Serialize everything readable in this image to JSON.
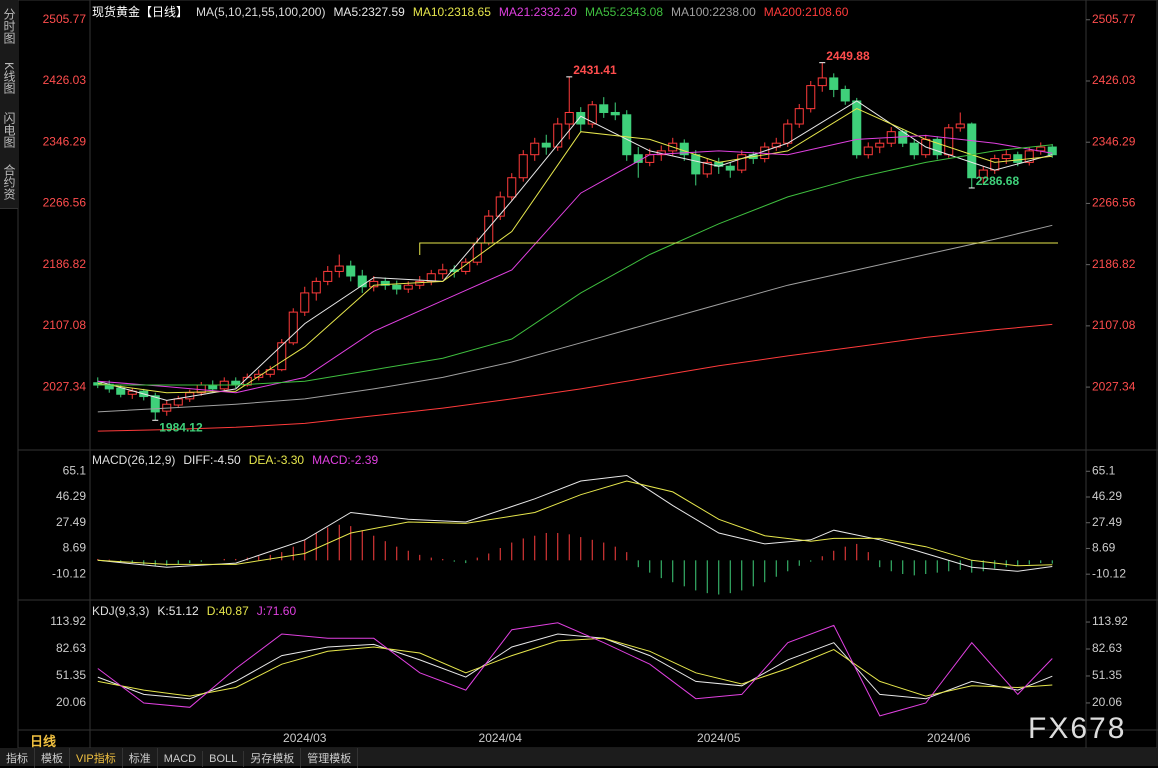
{
  "ui": {
    "sidebar": [
      "分时图",
      "K线图",
      "闪电图",
      "合约资料"
    ],
    "period": "日线",
    "tabs": [
      "指标",
      "模板",
      "VIP指标",
      "标准",
      "MACD",
      "BOLL",
      "另存模板",
      "管理模板"
    ],
    "watermark": "FX678"
  },
  "chart_data": [
    {
      "type": "candlestick",
      "title": "现货黄金【日线】",
      "subtitle": "MA(5,10,21,55,100,200)",
      "up_color": "#ff3b3b",
      "down_color": "#3fd07a",
      "xlim": [
        -0.5,
        83.5
      ],
      "ylim": [
        1948,
        2525
      ],
      "yticks": [
        2027.34,
        2107.08,
        2186.82,
        2266.56,
        2346.29,
        2426.03,
        2505.77
      ],
      "ohlc": [
        [
          2033,
          2040,
          2026,
          2030
        ],
        [
          2031,
          2036,
          2020,
          2025
        ],
        [
          2026,
          2030,
          2014,
          2018
        ],
        [
          2018,
          2026,
          2012,
          2022
        ],
        [
          2022,
          2025,
          2010,
          2015
        ],
        [
          2016,
          2020,
          1984.12,
          1995
        ],
        [
          1996,
          2010,
          1990,
          2005
        ],
        [
          2004,
          2016,
          2000,
          2012
        ],
        [
          2012,
          2024,
          2008,
          2020
        ],
        [
          2020,
          2034,
          2016,
          2030
        ],
        [
          2030,
          2036,
          2020,
          2025
        ],
        [
          2025,
          2040,
          2022,
          2035
        ],
        [
          2035,
          2040,
          2026,
          2030
        ],
        [
          2030,
          2045,
          2028,
          2040
        ],
        [
          2040,
          2050,
          2036,
          2044
        ],
        [
          2044,
          2055,
          2040,
          2050
        ],
        [
          2050,
          2090,
          2048,
          2085
        ],
        [
          2085,
          2130,
          2082,
          2125
        ],
        [
          2125,
          2158,
          2120,
          2150
        ],
        [
          2150,
          2170,
          2140,
          2165
        ],
        [
          2165,
          2185,
          2160,
          2178
        ],
        [
          2178,
          2200,
          2170,
          2185
        ],
        [
          2185,
          2192,
          2165,
          2172
        ],
        [
          2172,
          2180,
          2150,
          2158
        ],
        [
          2158,
          2172,
          2152,
          2165
        ],
        [
          2165,
          2170,
          2154,
          2160
        ],
        [
          2160,
          2166,
          2148,
          2155
        ],
        [
          2155,
          2165,
          2150,
          2160
        ],
        [
          2160,
          2172,
          2155,
          2165
        ],
        [
          2165,
          2180,
          2160,
          2175
        ],
        [
          2175,
          2188,
          2168,
          2180
        ],
        [
          2180,
          2186,
          2170,
          2178
        ],
        [
          2178,
          2195,
          2174,
          2190
        ],
        [
          2190,
          2222,
          2186,
          2215
        ],
        [
          2215,
          2258,
          2212,
          2250
        ],
        [
          2250,
          2282,
          2245,
          2275
        ],
        [
          2275,
          2306,
          2270,
          2300
        ],
        [
          2300,
          2336,
          2295,
          2330
        ],
        [
          2330,
          2352,
          2322,
          2345
        ],
        [
          2345,
          2356,
          2330,
          2340
        ],
        [
          2340,
          2378,
          2335,
          2370
        ],
        [
          2370,
          2431.41,
          2350,
          2385
        ],
        [
          2385,
          2392,
          2360,
          2370
        ],
        [
          2370,
          2400,
          2365,
          2395
        ],
        [
          2395,
          2405,
          2378,
          2385
        ],
        [
          2385,
          2398,
          2375,
          2382
        ],
        [
          2382,
          2388,
          2322,
          2330
        ],
        [
          2330,
          2340,
          2300,
          2320
        ],
        [
          2320,
          2338,
          2315,
          2330
        ],
        [
          2330,
          2342,
          2322,
          2335
        ],
        [
          2335,
          2352,
          2328,
          2345
        ],
        [
          2345,
          2350,
          2322,
          2330
        ],
        [
          2330,
          2336,
          2290,
          2305
        ],
        [
          2305,
          2325,
          2300,
          2320
        ],
        [
          2320,
          2326,
          2305,
          2315
        ],
        [
          2315,
          2320,
          2300,
          2310
        ],
        [
          2310,
          2336,
          2306,
          2330
        ],
        [
          2330,
          2334,
          2318,
          2325
        ],
        [
          2325,
          2346,
          2320,
          2340
        ],
        [
          2340,
          2352,
          2335,
          2345
        ],
        [
          2345,
          2376,
          2340,
          2370
        ],
        [
          2370,
          2396,
          2365,
          2390
        ],
        [
          2390,
          2426,
          2385,
          2420
        ],
        [
          2420,
          2449.88,
          2412,
          2430
        ],
        [
          2430,
          2436,
          2405,
          2415
        ],
        [
          2415,
          2420,
          2395,
          2400
        ],
        [
          2400,
          2404,
          2325,
          2330
        ],
        [
          2330,
          2346,
          2325,
          2340
        ],
        [
          2340,
          2350,
          2332,
          2345
        ],
        [
          2345,
          2366,
          2340,
          2360
        ],
        [
          2360,
          2364,
          2340,
          2345
        ],
        [
          2345,
          2350,
          2324,
          2330
        ],
        [
          2330,
          2356,
          2326,
          2350
        ],
        [
          2350,
          2354,
          2324,
          2330
        ],
        [
          2330,
          2370,
          2326,
          2365
        ],
        [
          2365,
          2385,
          2360,
          2370
        ],
        [
          2370,
          2372,
          2286.68,
          2300
        ],
        [
          2300,
          2315,
          2292,
          2310
        ],
        [
          2310,
          2330,
          2305,
          2325
        ],
        [
          2325,
          2336,
          2318,
          2330
        ],
        [
          2330,
          2334,
          2315,
          2320
        ],
        [
          2320,
          2340,
          2316,
          2335
        ],
        [
          2335,
          2346,
          2330,
          2340
        ],
        [
          2340,
          2344,
          2326,
          2330
        ]
      ],
      "series": [
        {
          "name": "MA5:2327.59",
          "color": "#e8e8e8",
          "x": [
            0,
            6,
            12,
            18,
            24,
            30,
            36,
            42,
            48,
            54,
            60,
            66,
            72,
            78,
            83
          ],
          "values": [
            2035,
            2010,
            2025,
            2110,
            2170,
            2165,
            2270,
            2380,
            2335,
            2315,
            2345,
            2400,
            2340,
            2310,
            2330
          ]
        },
        {
          "name": "MA10:2318.65",
          "color": "#e6e64c",
          "x": [
            0,
            6,
            12,
            18,
            24,
            30,
            36,
            42,
            48,
            54,
            60,
            66,
            72,
            78,
            83
          ],
          "values": [
            2032,
            2020,
            2022,
            2080,
            2160,
            2165,
            2230,
            2360,
            2350,
            2320,
            2335,
            2390,
            2350,
            2320,
            2328
          ]
        },
        {
          "name": "MA21:2332.20",
          "color": "#e040e0",
          "x": [
            0,
            6,
            12,
            18,
            24,
            30,
            36,
            42,
            48,
            54,
            60,
            66,
            72,
            78,
            83
          ],
          "values": [
            2035,
            2028,
            2020,
            2040,
            2100,
            2140,
            2180,
            2280,
            2330,
            2335,
            2330,
            2350,
            2355,
            2345,
            2332
          ]
        },
        {
          "name": "MA55:2343.08",
          "color": "#3fbf3f",
          "x": [
            0,
            6,
            12,
            18,
            24,
            30,
            36,
            42,
            48,
            54,
            60,
            66,
            72,
            78,
            83
          ],
          "values": [
            2030,
            2030,
            2030,
            2035,
            2050,
            2065,
            2090,
            2150,
            2200,
            2240,
            2275,
            2300,
            2320,
            2335,
            2343
          ]
        },
        {
          "name": "MA100:2238.00",
          "color": "#a0a0a0",
          "x": [
            0,
            6,
            12,
            18,
            24,
            30,
            36,
            42,
            48,
            54,
            60,
            66,
            72,
            78,
            83
          ],
          "values": [
            1995,
            2000,
            2005,
            2012,
            2025,
            2040,
            2060,
            2085,
            2110,
            2135,
            2160,
            2180,
            2200,
            2220,
            2238
          ]
        },
        {
          "name": "MA200:2108.60",
          "color": "#ff3b3b",
          "x": [
            0,
            6,
            12,
            18,
            24,
            30,
            36,
            42,
            48,
            54,
            60,
            66,
            72,
            78,
            83
          ],
          "values": [
            1970,
            1972,
            1975,
            1980,
            1990,
            2000,
            2012,
            2025,
            2040,
            2055,
            2068,
            2080,
            2092,
            2102,
            2109
          ]
        }
      ],
      "reference_line": {
        "value": 2215,
        "x": [
          28,
          83.5
        ],
        "color": "#e6e64c"
      },
      "high_low_labels": [
        {
          "x": 41,
          "y": 2431.41,
          "color": "#ff4d4d"
        },
        {
          "x": 63,
          "y": 2449.88,
          "color": "#ff4d4d"
        },
        {
          "x": 76,
          "y": 2286.68,
          "color": "#3fd07a"
        },
        {
          "x": 5,
          "y": 1984.12,
          "color": "#3fd07a"
        }
      ]
    },
    {
      "type": "macd",
      "title": "MACD(26,12,9)",
      "xlim": [
        -0.5,
        83.5
      ],
      "ylim": [
        -29,
        77
      ],
      "yticks": [
        -10.12,
        8.69,
        27.49,
        46.29,
        65.1
      ],
      "series": [
        {
          "name": "DIFF:-4.50",
          "color": "#e8e8e8",
          "x": [
            0,
            6,
            12,
            18,
            22,
            27,
            32,
            38,
            42,
            46,
            50,
            54,
            58,
            62,
            64,
            68,
            72,
            76,
            80,
            83
          ],
          "values": [
            0,
            -5,
            -2,
            15,
            35,
            30,
            28,
            45,
            58,
            62,
            40,
            20,
            12,
            15,
            22,
            15,
            5,
            -5,
            -8,
            -4.5
          ]
        },
        {
          "name": "DEA:-3.30",
          "color": "#e6e64c",
          "x": [
            0,
            6,
            12,
            18,
            22,
            27,
            32,
            38,
            42,
            46,
            50,
            54,
            58,
            62,
            64,
            68,
            72,
            76,
            80,
            83
          ],
          "values": [
            0,
            -3,
            -3,
            5,
            20,
            28,
            27,
            35,
            48,
            58,
            50,
            30,
            18,
            14,
            16,
            16,
            10,
            0,
            -4,
            -3.3
          ]
        }
      ],
      "histogram": {
        "name": "MACD:-2.39",
        "color": "#e040e0",
        "up_color": "#ff4040",
        "down_color": "#3fd07a",
        "values": [
          1,
          0.5,
          -1,
          -2,
          -3,
          -4,
          -4,
          -3,
          -2,
          -1,
          0,
          1,
          1,
          2,
          3,
          4,
          6,
          10,
          15,
          20,
          24,
          26,
          25,
          22,
          18,
          14,
          10,
          7,
          4,
          2,
          1,
          -1,
          -2,
          2,
          5,
          9,
          13,
          16,
          18,
          20,
          20,
          19,
          17,
          15,
          13,
          10,
          6,
          -5,
          -9,
          -13,
          -16,
          -19,
          -22,
          -24,
          -25,
          -24,
          -22,
          -19,
          -16,
          -12,
          -8,
          -4,
          -1,
          3,
          7,
          10,
          12,
          6,
          -5,
          -8,
          -10,
          -11,
          -10,
          -9,
          -8,
          -7,
          -9,
          -8,
          -6,
          -5,
          -4,
          -3,
          -2,
          -2.39
        ]
      }
    },
    {
      "type": "line",
      "title": "KDJ(9,3,3)",
      "xlim": [
        -0.5,
        83.5
      ],
      "ylim": [
        -9,
        136
      ],
      "yticks": [
        20.06,
        51.35,
        82.63,
        113.92
      ],
      "categories": [
        null,
        null,
        null,
        null,
        null,
        null,
        null,
        null,
        null,
        null,
        null,
        null,
        null,
        null,
        null,
        null,
        null,
        null,
        "2024/03",
        null,
        null,
        null,
        null,
        null,
        null,
        null,
        null,
        null,
        null,
        null,
        null,
        null,
        null,
        null,
        null,
        "2024/04",
        null,
        null,
        null,
        null,
        null,
        null,
        null,
        null,
        null,
        null,
        null,
        null,
        null,
        null,
        null,
        null,
        null,
        null,
        "2024/05",
        null,
        null,
        null,
        null,
        null,
        null,
        null,
        null,
        null,
        null,
        null,
        null,
        null,
        null,
        null,
        null,
        null,
        null,
        null,
        "2024/06",
        null,
        null,
        null,
        null,
        null,
        null,
        null,
        null,
        null
      ],
      "series": [
        {
          "name": "K:51.12",
          "color": "#e8e8e8",
          "x": [
            0,
            4,
            8,
            12,
            16,
            20,
            24,
            28,
            32,
            36,
            40,
            44,
            48,
            52,
            56,
            60,
            64,
            68,
            72,
            76,
            80,
            83
          ],
          "values": [
            50,
            30,
            25,
            45,
            75,
            85,
            88,
            70,
            50,
            85,
            100,
            95,
            75,
            45,
            40,
            70,
            90,
            30,
            25,
            45,
            35,
            51.12
          ]
        },
        {
          "name": "D:40.87",
          "color": "#e6e64c",
          "x": [
            0,
            4,
            8,
            12,
            16,
            20,
            24,
            28,
            32,
            36,
            40,
            44,
            48,
            52,
            56,
            60,
            64,
            68,
            72,
            76,
            80,
            83
          ],
          "values": [
            45,
            35,
            28,
            38,
            65,
            80,
            85,
            78,
            55,
            75,
            92,
            95,
            80,
            55,
            42,
            60,
            82,
            45,
            28,
            40,
            38,
            40.87
          ]
        },
        {
          "name": "J:71.60",
          "color": "#e040e0",
          "x": [
            0,
            4,
            8,
            12,
            16,
            20,
            24,
            28,
            32,
            36,
            40,
            44,
            48,
            52,
            56,
            60,
            64,
            68,
            72,
            76,
            80,
            83
          ],
          "values": [
            60,
            20,
            15,
            60,
            100,
            95,
            95,
            55,
            35,
            105,
            113,
            90,
            65,
            25,
            30,
            90,
            110,
            5,
            20,
            90,
            30,
            71.6
          ]
        }
      ]
    }
  ]
}
